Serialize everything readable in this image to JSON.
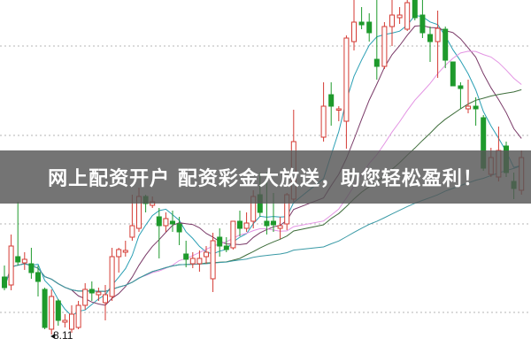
{
  "banner": {
    "text": "网上配资开户 配资彩金大放送，助您轻松盈利！"
  },
  "chart_data": {
    "type": "candlestick",
    "title": "",
    "xlabel": "",
    "ylabel": "",
    "grid": "horizontal-dotted",
    "low_annotation": "8.11",
    "colors": {
      "up": "#d43a33",
      "down": "#1e9a2c",
      "grid": "#b5b5b5"
    },
    "ma_colors": [
      "#2a9fb4",
      "#7a3a68",
      "#e394e3",
      "#3f6e3c",
      "#3a9aa6"
    ],
    "candles": [
      [
        8.76,
        8.64,
        8.89,
        8.61
      ],
      [
        8.67,
        9.11,
        9.24,
        8.61
      ],
      [
        8.99,
        8.93,
        9.61,
        8.89
      ],
      [
        8.92,
        8.96,
        9.04,
        8.84
      ],
      [
        8.91,
        8.81,
        9.09,
        8.74
      ],
      [
        8.81,
        8.71,
        8.89,
        8.54
      ],
      [
        8.62,
        8.19,
        8.64,
        8.17
      ],
      [
        8.17,
        8.54,
        8.62,
        8.11
      ],
      [
        8.49,
        8.27,
        8.51,
        8.21
      ],
      [
        8.25,
        8.27,
        8.34,
        8.19
      ],
      [
        8.17,
        8.34,
        8.44,
        8.13
      ],
      [
        8.19,
        8.44,
        8.49,
        8.17
      ],
      [
        8.44,
        8.62,
        8.69,
        8.39
      ],
      [
        8.62,
        8.58,
        8.71,
        8.49
      ],
      [
        8.56,
        8.59,
        8.64,
        8.49
      ],
      [
        8.47,
        8.56,
        8.67,
        8.27
      ],
      [
        8.54,
        8.99,
        9.09,
        8.49
      ],
      [
        8.99,
        9.07,
        9.09,
        8.81
      ],
      [
        9.04,
        9.06,
        9.17,
        8.99
      ],
      [
        9.21,
        9.34,
        9.69,
        9.17
      ],
      [
        9.31,
        9.67,
        9.77,
        9.27
      ],
      [
        9.67,
        9.59,
        9.69,
        9.49
      ],
      [
        9.57,
        9.61,
        9.67,
        9.54
      ],
      [
        9.44,
        9.34,
        9.54,
        8.97
      ],
      [
        9.34,
        9.42,
        9.49,
        9.27
      ],
      [
        9.39,
        9.36,
        9.51,
        9.27
      ],
      [
        9.36,
        9.27,
        9.44,
        9.12
      ],
      [
        9.02,
        8.96,
        9.17,
        8.87
      ],
      [
        8.91,
        8.97,
        9.04,
        8.86
      ],
      [
        8.91,
        8.97,
        9.06,
        8.82
      ],
      [
        8.99,
        9.04,
        9.11,
        8.91
      ],
      [
        8.74,
        9.17,
        9.26,
        8.59
      ],
      [
        9.21,
        9.11,
        9.31,
        8.99
      ],
      [
        9.11,
        9.07,
        9.21,
        9.04
      ],
      [
        9.09,
        9.39,
        9.39,
        9.07
      ],
      [
        9.39,
        9.31,
        9.51,
        9.22
      ],
      [
        9.31,
        9.37,
        9.49,
        9.27
      ],
      [
        9.39,
        9.67,
        9.74,
        9.31
      ],
      [
        9.69,
        9.49,
        9.94,
        9.44
      ],
      [
        9.39,
        9.34,
        9.94,
        9.24
      ],
      [
        9.39,
        9.35,
        9.71,
        9.27
      ],
      [
        9.31,
        9.34,
        9.44,
        9.19
      ],
      [
        9.36,
        9.69,
        9.71,
        9.29
      ],
      [
        9.64,
        10.29,
        10.65,
        9.61
      ],
      [
        10.34,
        10.69,
        10.96,
        10.29
      ],
      [
        10.82,
        10.69,
        10.96,
        10.47
      ],
      [
        10.65,
        10.66,
        10.69,
        10.52
      ],
      [
        10.52,
        11.46,
        11.49,
        10.21
      ],
      [
        11.42,
        11.64,
        11.89,
        11.32
      ],
      [
        11.64,
        11.61,
        11.81,
        11.56
      ],
      [
        11.64,
        11.52,
        11.74,
        11.42
      ],
      [
        11.22,
        11.14,
        11.89,
        10.99
      ],
      [
        11.14,
        11.59,
        11.64,
        11.11
      ],
      [
        11.59,
        11.72,
        11.89,
        11.37
      ],
      [
        11.69,
        11.72,
        11.81,
        11.62
      ],
      [
        11.56,
        11.86,
        11.89,
        11.54
      ],
      [
        11.89,
        11.69,
        11.89,
        11.66
      ],
      [
        11.72,
        11.52,
        11.89,
        11.46
      ],
      [
        11.5,
        11.42,
        11.59,
        11.19
      ],
      [
        11.42,
        11.57,
        11.77,
        11.01
      ],
      [
        11.56,
        11.21,
        11.59,
        11.12
      ],
      [
        11.19,
        10.92,
        11.19,
        10.92
      ],
      [
        10.92,
        10.89,
        10.96,
        10.66
      ],
      [
        10.66,
        10.69,
        10.99,
        10.61
      ],
      [
        10.69,
        10.66,
        10.79,
        10.47
      ],
      [
        10.56,
        9.99,
        10.59,
        9.96
      ],
      [
        9.92,
        10.11,
        10.22,
        9.89
      ],
      [
        9.89,
        10.19,
        10.46,
        9.84
      ],
      [
        10.24,
        9.94,
        10.29,
        9.89
      ],
      [
        9.84,
        9.76,
        9.94,
        9.64
      ],
      [
        9.74,
        10.11,
        10.19,
        9.69
      ]
    ]
  }
}
